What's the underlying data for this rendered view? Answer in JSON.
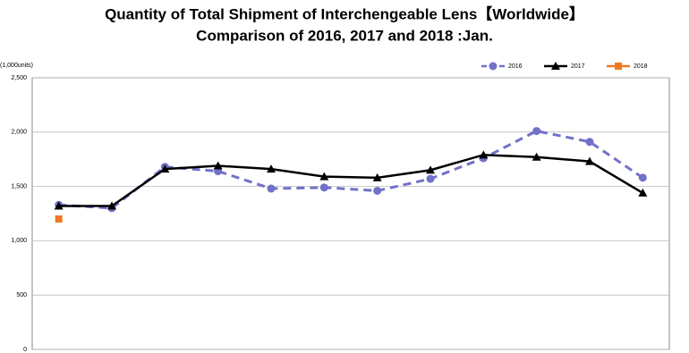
{
  "chart_data": {
    "type": "line",
    "title": "Quantity of Total Shipment of Interchengeable Lens【Worldwide】",
    "subtitle": "Comparison of 2016, 2017 and 2018 :Jan.",
    "y_label": "(1,000units)",
    "categories": [
      null,
      null,
      null,
      null,
      null,
      null,
      null,
      null,
      null,
      null,
      null,
      null
    ],
    "series": [
      {
        "name": "2016",
        "color": "#7171c9",
        "line_style": "dashed",
        "marker": "circle",
        "values": [
          1330,
          1300,
          1680,
          1640,
          1480,
          1490,
          1460,
          1570,
          1760,
          2010,
          1910,
          1580
        ]
      },
      {
        "name": "2017",
        "color": "#000000",
        "line_style": "solid",
        "marker": "triangle",
        "values": [
          1320,
          1320,
          1660,
          1690,
          1660,
          1590,
          1580,
          1650,
          1790,
          1770,
          1730,
          1440
        ]
      },
      {
        "name": "2018",
        "color": "#f07820",
        "line_style": "solid",
        "marker": "square",
        "values": [
          1200,
          null,
          null,
          null,
          null,
          null,
          null,
          null,
          null,
          null,
          null,
          null
        ]
      }
    ],
    "ylim": [
      0,
      2500
    ],
    "yticks": [
      0,
      500,
      {
        "value": 1000,
        "label": "1,000"
      },
      {
        "value": 1500,
        "label": "1,500"
      },
      {
        "value": 2000,
        "label": "2,000"
      },
      {
        "value": 2500,
        "label": "2,500"
      }
    ],
    "grid": true,
    "legend": "top-right"
  }
}
